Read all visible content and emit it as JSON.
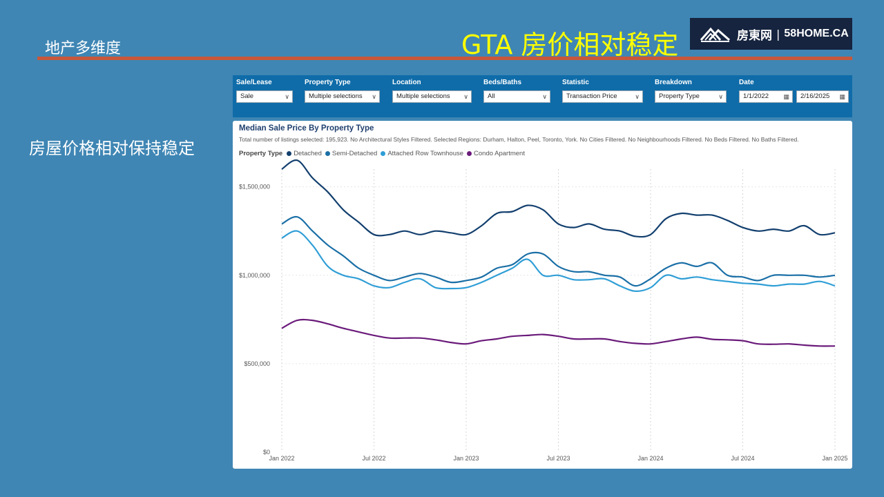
{
  "slide": {
    "section_title": "地产多维度",
    "headline": "GTA 房价相对稳定",
    "side_text": "房屋价格相对保持稳定",
    "logo": {
      "cn": "房東网",
      "sep": "|",
      "en": "58HOME.CA"
    }
  },
  "filters": [
    {
      "label": "Sale/Lease",
      "value": "Sale"
    },
    {
      "label": "Property Type",
      "value": "Multiple selections"
    },
    {
      "label": "Location",
      "value": "Multiple selections"
    },
    {
      "label": "Beds/Baths",
      "value": "All"
    },
    {
      "label": "Statistic",
      "value": "Transaction Price"
    },
    {
      "label": "Breakdown",
      "value": "Property Type"
    }
  ],
  "date_filter": {
    "label": "Date",
    "start": "1/1/2022",
    "end": "2/16/2025"
  },
  "colors": {
    "Detached": "#123f6e",
    "Semi-Detached": "#1a6fa6",
    "Attached Row Townhouse": "#2f9ed6",
    "Condo Apartment": "#6a1a7a",
    "filter_bar": "#0f6ca9",
    "page_bg": "#3f86b4",
    "accent_line": "#c8573a",
    "headline": "#ffff00"
  },
  "chart_data": {
    "type": "line",
    "title": "Median Sale Price By Property Type",
    "subtitle": "Total number of listings selected: 195,923. No Architectural Styles Filtered. Selected Regions: Durham, Halton, Peel, Toronto, York. No Cities Filtered. No Neighbourhoods Filtered. No Beds Filtered. No Baths Filtered.",
    "legend_title": "Property Type",
    "legend_position": "top-left",
    "x_start": "2022-01",
    "x_end": "2025-01",
    "x_ticks": [
      {
        "m": 0,
        "label": "Jan 2022"
      },
      {
        "m": 6,
        "label": "Jul 2022"
      },
      {
        "m": 12,
        "label": "Jan 2023"
      },
      {
        "m": 18,
        "label": "Jul 2023"
      },
      {
        "m": 24,
        "label": "Jan 2024"
      },
      {
        "m": 30,
        "label": "Jul 2024"
      },
      {
        "m": 36,
        "label": "Jan 2025"
      }
    ],
    "y_ticks": [
      {
        "v": 0,
        "label": "$0"
      },
      {
        "v": 500000,
        "label": "$500,000"
      },
      {
        "v": 1000000,
        "label": "$1,000,000"
      },
      {
        "v": 1500000,
        "label": "$1,500,000"
      }
    ],
    "ylim": [
      0,
      1600000
    ],
    "grid": "dotted",
    "series": [
      {
        "name": "Detached",
        "values": [
          1600000,
          1650000,
          1550000,
          1470000,
          1370000,
          1300000,
          1230000,
          1230000,
          1250000,
          1230000,
          1250000,
          1240000,
          1230000,
          1280000,
          1350000,
          1360000,
          1395000,
          1370000,
          1290000,
          1270000,
          1290000,
          1260000,
          1250000,
          1220000,
          1230000,
          1320000,
          1350000,
          1340000,
          1340000,
          1310000,
          1270000,
          1250000,
          1260000,
          1250000,
          1280000,
          1230000,
          1240000
        ]
      },
      {
        "name": "Semi-Detached",
        "values": [
          1290000,
          1330000,
          1250000,
          1170000,
          1110000,
          1040000,
          1000000,
          970000,
          990000,
          1010000,
          990000,
          960000,
          970000,
          990000,
          1040000,
          1060000,
          1120000,
          1120000,
          1050000,
          1020000,
          1020000,
          1000000,
          990000,
          940000,
          980000,
          1040000,
          1070000,
          1050000,
          1070000,
          1000000,
          990000,
          970000,
          1000000,
          1000000,
          1000000,
          990000,
          1000000
        ]
      },
      {
        "name": "Attached Row Townhouse",
        "values": [
          1210000,
          1250000,
          1170000,
          1050000,
          1000000,
          980000,
          940000,
          930000,
          960000,
          980000,
          930000,
          925000,
          930000,
          960000,
          1000000,
          1040000,
          1090000,
          1000000,
          1000000,
          975000,
          975000,
          980000,
          940000,
          910000,
          930000,
          1000000,
          980000,
          990000,
          975000,
          965000,
          955000,
          950000,
          940000,
          950000,
          950000,
          965000,
          940000
        ]
      },
      {
        "name": "Condo Apartment",
        "values": [
          700000,
          745000,
          745000,
          725000,
          700000,
          680000,
          660000,
          645000,
          645000,
          645000,
          635000,
          620000,
          612000,
          630000,
          640000,
          655000,
          660000,
          665000,
          655000,
          640000,
          640000,
          640000,
          625000,
          615000,
          612000,
          625000,
          640000,
          650000,
          638000,
          635000,
          630000,
          612000,
          610000,
          612000,
          605000,
          600000,
          600000
        ]
      }
    ]
  }
}
